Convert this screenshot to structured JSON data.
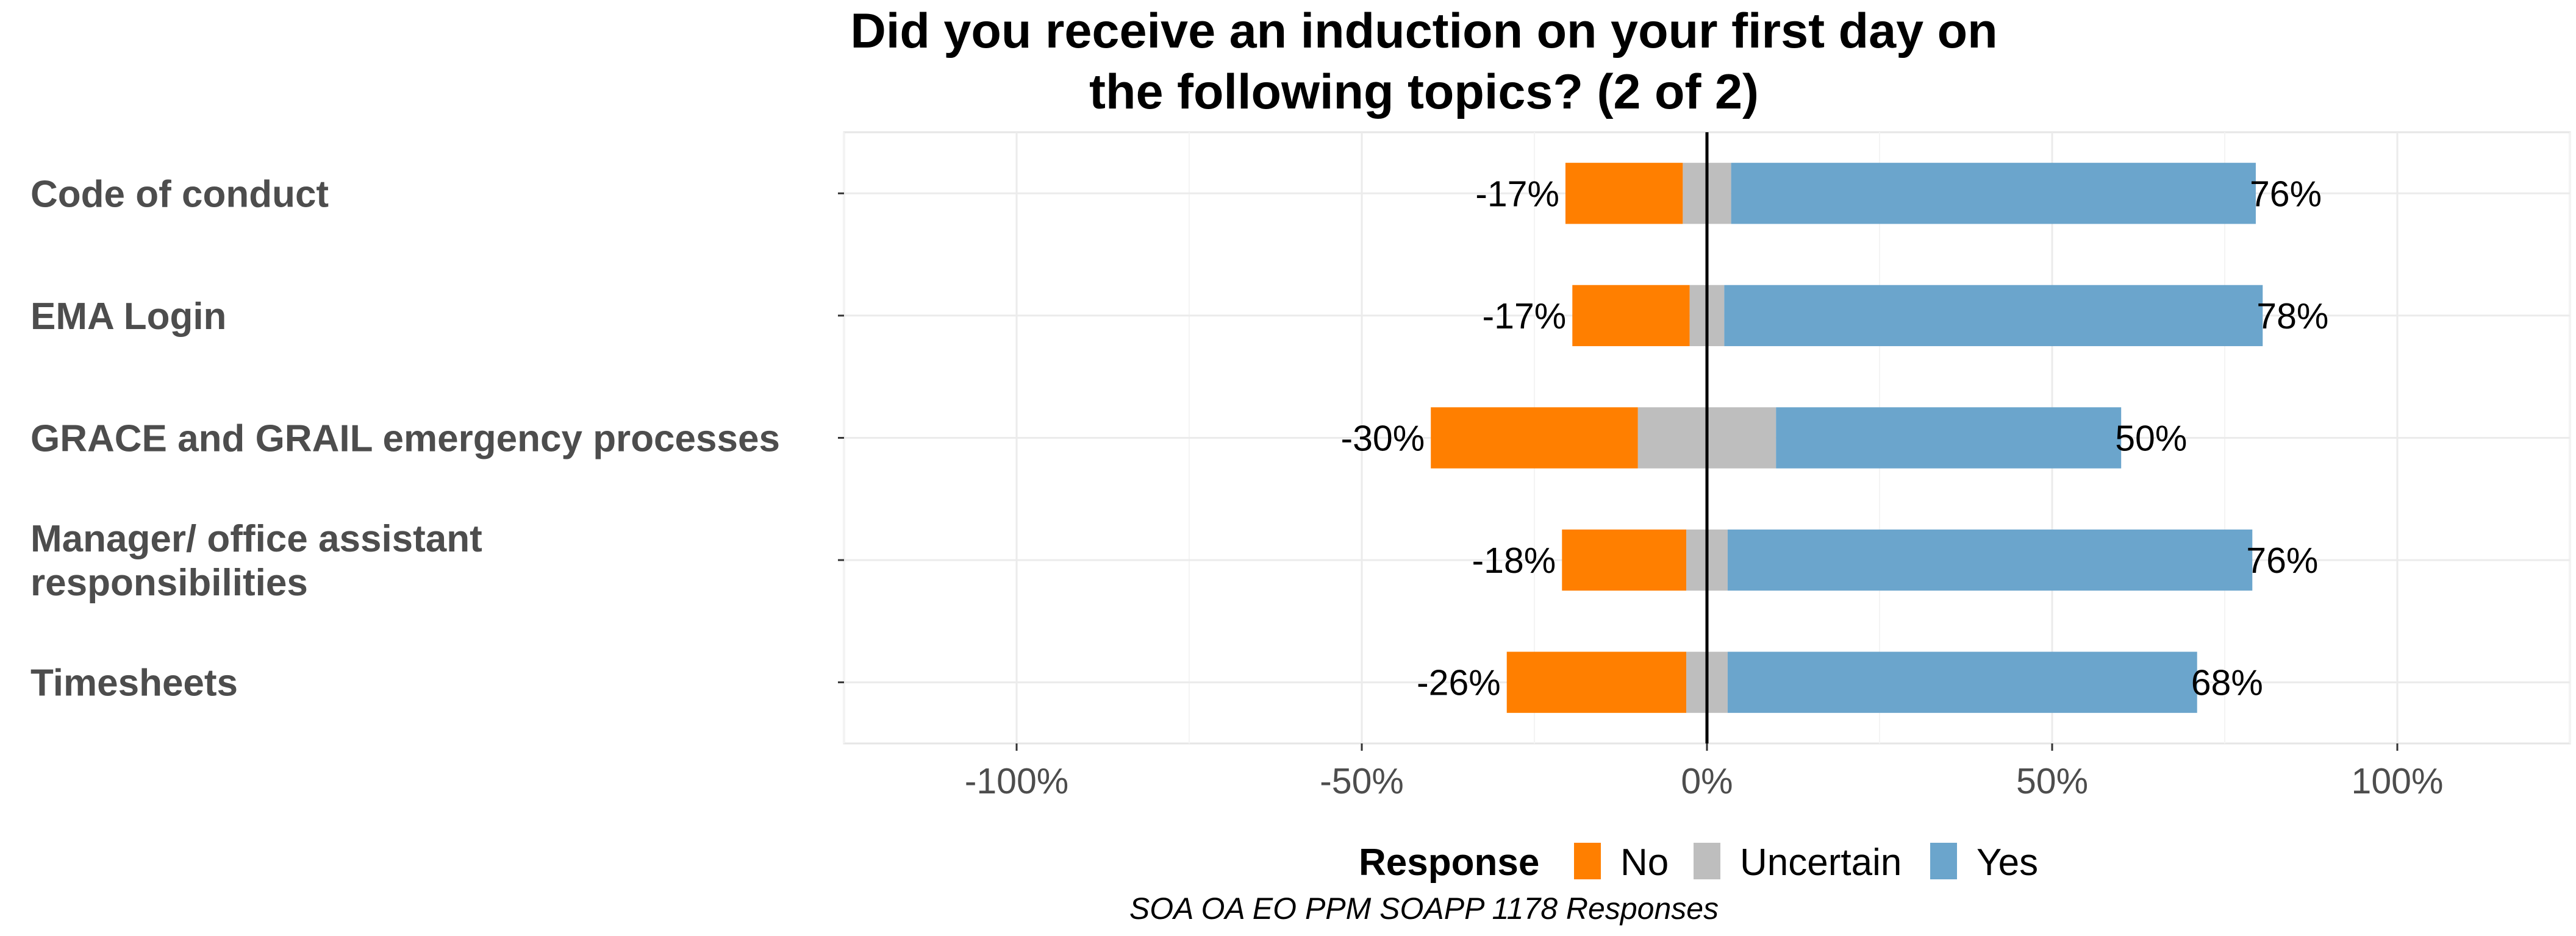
{
  "chart_data": {
    "type": "bar",
    "orientation": "horizontal",
    "stacked": true,
    "diverging": true,
    "title": "Did you receive an induction on your first day on the following topics? (2 of 2)",
    "title_lines": [
      "Did you receive an induction on your first day on",
      "the following topics? (2 of 2)"
    ],
    "categories": [
      "Code of conduct",
      "EMA Login",
      "GRACE and GRAIL emergency processes",
      "Manager/ office assistant responsibilities",
      "Timesheets"
    ],
    "category_lines": [
      [
        "Code of conduct"
      ],
      [
        "EMA Login"
      ],
      [
        "GRACE and GRAIL emergency processes"
      ],
      [
        "Manager/ office assistant",
        "responsibilities"
      ],
      [
        "Timesheets"
      ]
    ],
    "series": [
      {
        "name": "No",
        "color": "#ff7f00",
        "values": [
          17,
          17,
          30,
          18,
          26
        ]
      },
      {
        "name": "Uncertain",
        "color": "#bebebe",
        "values": [
          7,
          5,
          20,
          6,
          6
        ]
      },
      {
        "name": "Yes",
        "color": "#6ba5cc",
        "values": [
          76,
          78,
          50,
          76,
          68
        ]
      }
    ],
    "neg_labels": [
      "-17%",
      "-17%",
      "-30%",
      "-18%",
      "-26%"
    ],
    "pos_labels": [
      "76%",
      "78%",
      "50%",
      "76%",
      "68%"
    ],
    "xlim": [
      -125,
      125
    ],
    "x_ticks": [
      -100,
      -50,
      0,
      50,
      100
    ],
    "x_tick_labels": [
      "-100%",
      "-50%",
      "0%",
      "50%",
      "100%"
    ],
    "grid": true,
    "legend": {
      "title": "Response",
      "position": "bottom",
      "entries": [
        "No",
        "Uncertain",
        "Yes"
      ]
    },
    "caption": "SOA OA EO PPM SOAPP 1178 Responses"
  }
}
